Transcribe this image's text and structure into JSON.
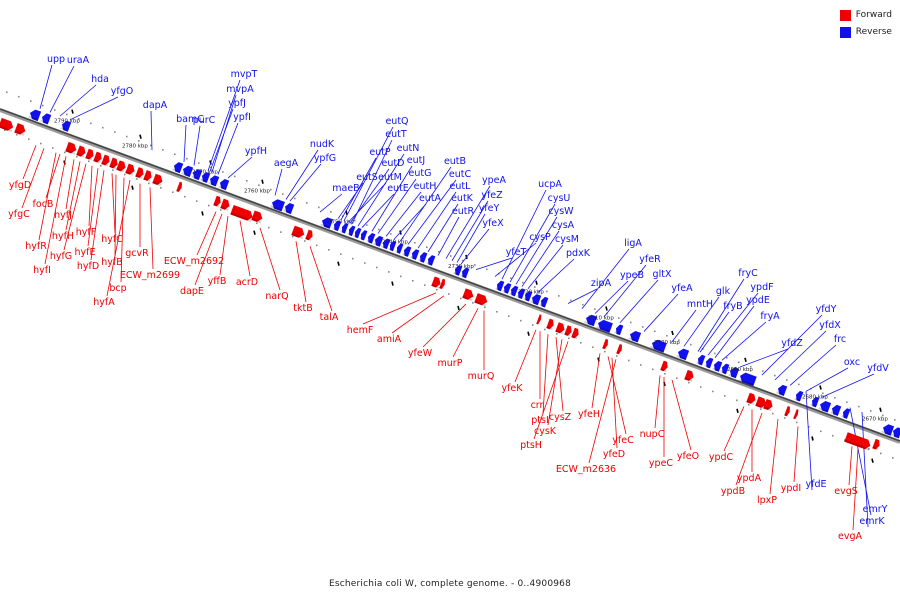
{
  "legend": {
    "items": [
      {
        "label": "Forward",
        "color": "#ee0000"
      },
      {
        "label": "Reverse",
        "color": "#1111ee"
      }
    ]
  },
  "caption": "Escherichia coli W, complete genome. - 0..4900968",
  "colors": {
    "forward": "#ee0000",
    "reverse": "#1111ee",
    "backbone": "#555555"
  },
  "ticks": [
    "2790 kbp",
    "2780 kbp",
    "2770 kbp",
    "2760 kbp",
    "2750 kbp",
    "2740 kbp",
    "2730 kbp",
    "2720 kbp",
    "2710 kbp",
    "2700 kbp",
    "2690 kbp",
    "2680 kbp",
    "2670 kbp"
  ],
  "reverse_genes": [
    "upp",
    "uraA",
    "hda",
    "yfgO",
    "dapA",
    "bamC",
    "purC",
    "mvpT",
    "mvpA",
    "ypfJ",
    "ypfI",
    "ypfH",
    "aegA",
    "nudK",
    "ypfG",
    "maeB",
    "eutS",
    "eutP",
    "eutQ",
    "eutT",
    "eutN",
    "eutM",
    "eutD",
    "eutJ",
    "eutG",
    "eutE",
    "eutH",
    "eutA",
    "eutB",
    "eutC",
    "eutL",
    "eutK",
    "eutR",
    "ypeA",
    "yfeZ",
    "yfeY",
    "yfeX",
    "yfeT",
    "cysP",
    "ucpA",
    "cysU",
    "cysW",
    "cysA",
    "cysM",
    "pdxK",
    "zipA",
    "ligA",
    "ypeB",
    "yfeR",
    "gltX",
    "yfeA",
    "mntH",
    "glk",
    "fryC",
    "fryB",
    "ypdF",
    "ypdE",
    "fryA",
    "yfdZ",
    "yfdY",
    "yfdX",
    "frc",
    "oxc",
    "yfdV",
    "yfdE",
    "emrY",
    "emrK"
  ],
  "forward_genes": [
    "yfgD",
    "yfgC",
    "focB",
    "hyfR",
    "hyfJ",
    "hyfI",
    "hyfH",
    "hyfG",
    "hyfF",
    "hyfE",
    "hyfD",
    "hyfC",
    "hyfB",
    "bcp",
    "hyfA",
    "gcvR",
    "ECW_m2699",
    "ECW_m2692",
    "dapE",
    "yffB",
    "acrD",
    "narQ",
    "tktB",
    "talA",
    "hemF",
    "amiA",
    "yfeW",
    "murP",
    "murQ",
    "yfeK",
    "crr",
    "ptsI",
    "cysZ",
    "cysK",
    "ptsH",
    "yfeH",
    "yfeC",
    "yfeD",
    "ECW_m2636",
    "nupC",
    "ypeC",
    "yfeO",
    "ypdC",
    "ypdA",
    "ypdB",
    "lpxP",
    "ypdI",
    "evgS",
    "evgA"
  ]
}
